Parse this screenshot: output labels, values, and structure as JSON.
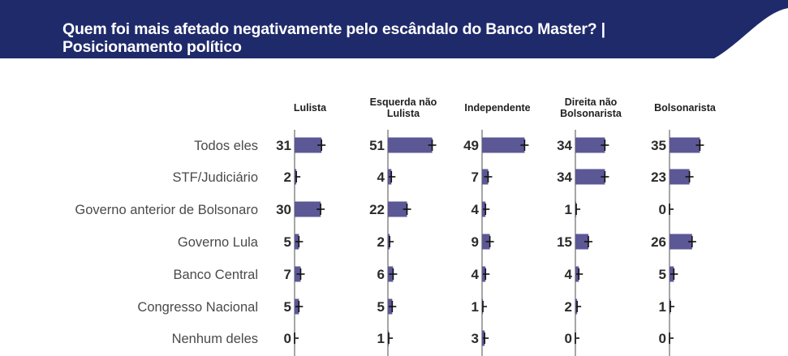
{
  "header": {
    "title_line1": "Quem foi mais afetado negativamente pelo escândalo do Banco Master? |",
    "title_line2": "Posicionamento político",
    "bg_color": "#1f2a6b"
  },
  "colors": {
    "bar": "#5c5896",
    "error": "#111111",
    "axis": "#a6a6a6"
  },
  "chart_data": {
    "type": "bar",
    "title": "Quem foi mais afetado negativamente pelo escândalo do Banco Master? | Posicionamento político",
    "categories": [
      "Todos eles",
      "STF/Judiciário",
      "Governo anterior de Bolsonaro",
      "Governo Lula",
      "Banco Central",
      "Congresso Nacional",
      "Nenhum deles"
    ],
    "series": [
      {
        "name": "Lulista",
        "name_lines": [
          "Lulista"
        ],
        "values": [
          31,
          2,
          30,
          5,
          7,
          5,
          0
        ]
      },
      {
        "name": "Esquerda não Lulista",
        "name_lines": [
          "Esquerda não",
          "Lulista"
        ],
        "values": [
          51,
          4,
          22,
          2,
          6,
          5,
          1
        ]
      },
      {
        "name": "Independente",
        "name_lines": [
          "Independente"
        ],
        "values": [
          49,
          7,
          4,
          9,
          4,
          1,
          3
        ]
      },
      {
        "name": "Direita não Bolsonarista",
        "name_lines": [
          "Direita não",
          "Bolsonarista"
        ],
        "values": [
          34,
          34,
          1,
          15,
          4,
          2,
          0
        ]
      },
      {
        "name": "Bolsonarista",
        "name_lines": [
          "Bolsonarista"
        ],
        "values": [
          35,
          23,
          0,
          26,
          5,
          1,
          0
        ]
      }
    ],
    "orientation": "horizontal",
    "xlim": [
      0,
      100
    ],
    "unit": "%"
  }
}
